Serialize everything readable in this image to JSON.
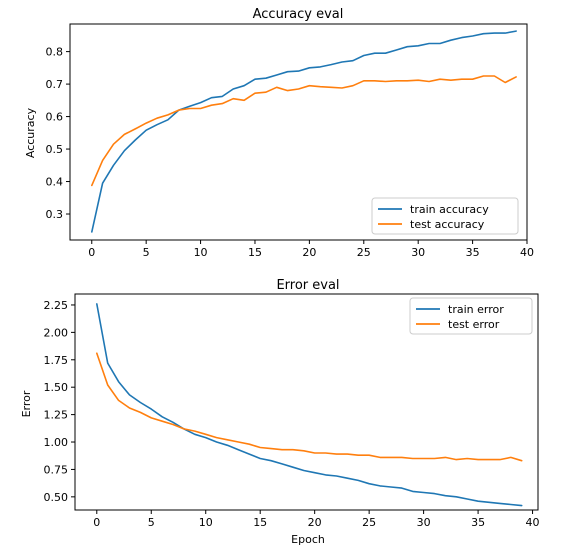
{
  "chart_data": [
    {
      "type": "line",
      "title": "Accuracy eval",
      "xlabel": "",
      "ylabel": "Accuracy",
      "xlim": [
        -2,
        40
      ],
      "ylim": [
        0.22,
        0.885
      ],
      "xticks": [
        0,
        5,
        10,
        15,
        20,
        25,
        30,
        35,
        40
      ],
      "yticks": [
        0.3,
        0.4,
        0.5,
        0.6,
        0.7,
        0.8
      ],
      "legend": "bottom-right",
      "x": [
        0,
        1,
        2,
        3,
        4,
        5,
        6,
        7,
        8,
        9,
        10,
        11,
        12,
        13,
        14,
        15,
        16,
        17,
        18,
        19,
        20,
        21,
        22,
        23,
        24,
        25,
        26,
        27,
        28,
        29,
        30,
        31,
        32,
        33,
        34,
        35,
        36,
        37,
        38,
        39
      ],
      "series": [
        {
          "name": "train accuracy",
          "color": "#1f77b4",
          "values": [
            0.245,
            0.395,
            0.45,
            0.495,
            0.528,
            0.558,
            0.575,
            0.59,
            0.62,
            0.632,
            0.643,
            0.658,
            0.662,
            0.685,
            0.695,
            0.715,
            0.718,
            0.728,
            0.738,
            0.74,
            0.75,
            0.753,
            0.76,
            0.768,
            0.772,
            0.788,
            0.795,
            0.795,
            0.805,
            0.815,
            0.818,
            0.825,
            0.825,
            0.835,
            0.843,
            0.848,
            0.855,
            0.857,
            0.857,
            0.863
          ]
        },
        {
          "name": "test accuracy",
          "color": "#ff7f0e",
          "values": [
            0.388,
            0.465,
            0.515,
            0.545,
            0.562,
            0.58,
            0.595,
            0.605,
            0.62,
            0.625,
            0.625,
            0.635,
            0.64,
            0.655,
            0.65,
            0.672,
            0.675,
            0.69,
            0.68,
            0.685,
            0.695,
            0.692,
            0.69,
            0.688,
            0.695,
            0.71,
            0.71,
            0.708,
            0.71,
            0.71,
            0.712,
            0.708,
            0.715,
            0.712,
            0.715,
            0.715,
            0.725,
            0.725,
            0.705,
            0.722
          ]
        }
      ]
    },
    {
      "type": "line",
      "title": "Error eval",
      "xlabel": "Epoch",
      "ylabel": "Error",
      "xlim": [
        -2,
        40.5
      ],
      "ylim": [
        0.38,
        2.35
      ],
      "xticks": [
        0,
        5,
        10,
        15,
        20,
        25,
        30,
        35,
        40
      ],
      "yticks": [
        0.5,
        0.75,
        1.0,
        1.25,
        1.5,
        1.75,
        2.0,
        2.25
      ],
      "ytick_labels": [
        "0.50",
        "0.75",
        "1.00",
        "1.25",
        "1.50",
        "1.75",
        "2.00",
        "2.25"
      ],
      "legend": "top-right",
      "x": [
        0,
        1,
        2,
        3,
        4,
        5,
        6,
        7,
        8,
        9,
        10,
        11,
        12,
        13,
        14,
        15,
        16,
        17,
        18,
        19,
        20,
        21,
        22,
        23,
        24,
        25,
        26,
        27,
        28,
        29,
        30,
        31,
        32,
        33,
        34,
        35,
        36,
        37,
        38,
        39
      ],
      "series": [
        {
          "name": "train error",
          "color": "#1f77b4",
          "values": [
            2.26,
            1.72,
            1.55,
            1.43,
            1.36,
            1.3,
            1.23,
            1.18,
            1.12,
            1.07,
            1.04,
            1.0,
            0.97,
            0.93,
            0.89,
            0.85,
            0.83,
            0.8,
            0.77,
            0.74,
            0.72,
            0.7,
            0.69,
            0.67,
            0.65,
            0.62,
            0.6,
            0.59,
            0.58,
            0.55,
            0.54,
            0.53,
            0.51,
            0.5,
            0.48,
            0.46,
            0.45,
            0.44,
            0.43,
            0.42
          ]
        },
        {
          "name": "test error",
          "color": "#ff7f0e",
          "values": [
            1.81,
            1.52,
            1.38,
            1.31,
            1.27,
            1.22,
            1.19,
            1.16,
            1.12,
            1.1,
            1.07,
            1.04,
            1.02,
            1.0,
            0.98,
            0.95,
            0.94,
            0.93,
            0.93,
            0.92,
            0.9,
            0.9,
            0.89,
            0.89,
            0.88,
            0.88,
            0.86,
            0.86,
            0.86,
            0.85,
            0.85,
            0.85,
            0.86,
            0.84,
            0.85,
            0.84,
            0.84,
            0.84,
            0.86,
            0.83
          ]
        }
      ]
    }
  ]
}
